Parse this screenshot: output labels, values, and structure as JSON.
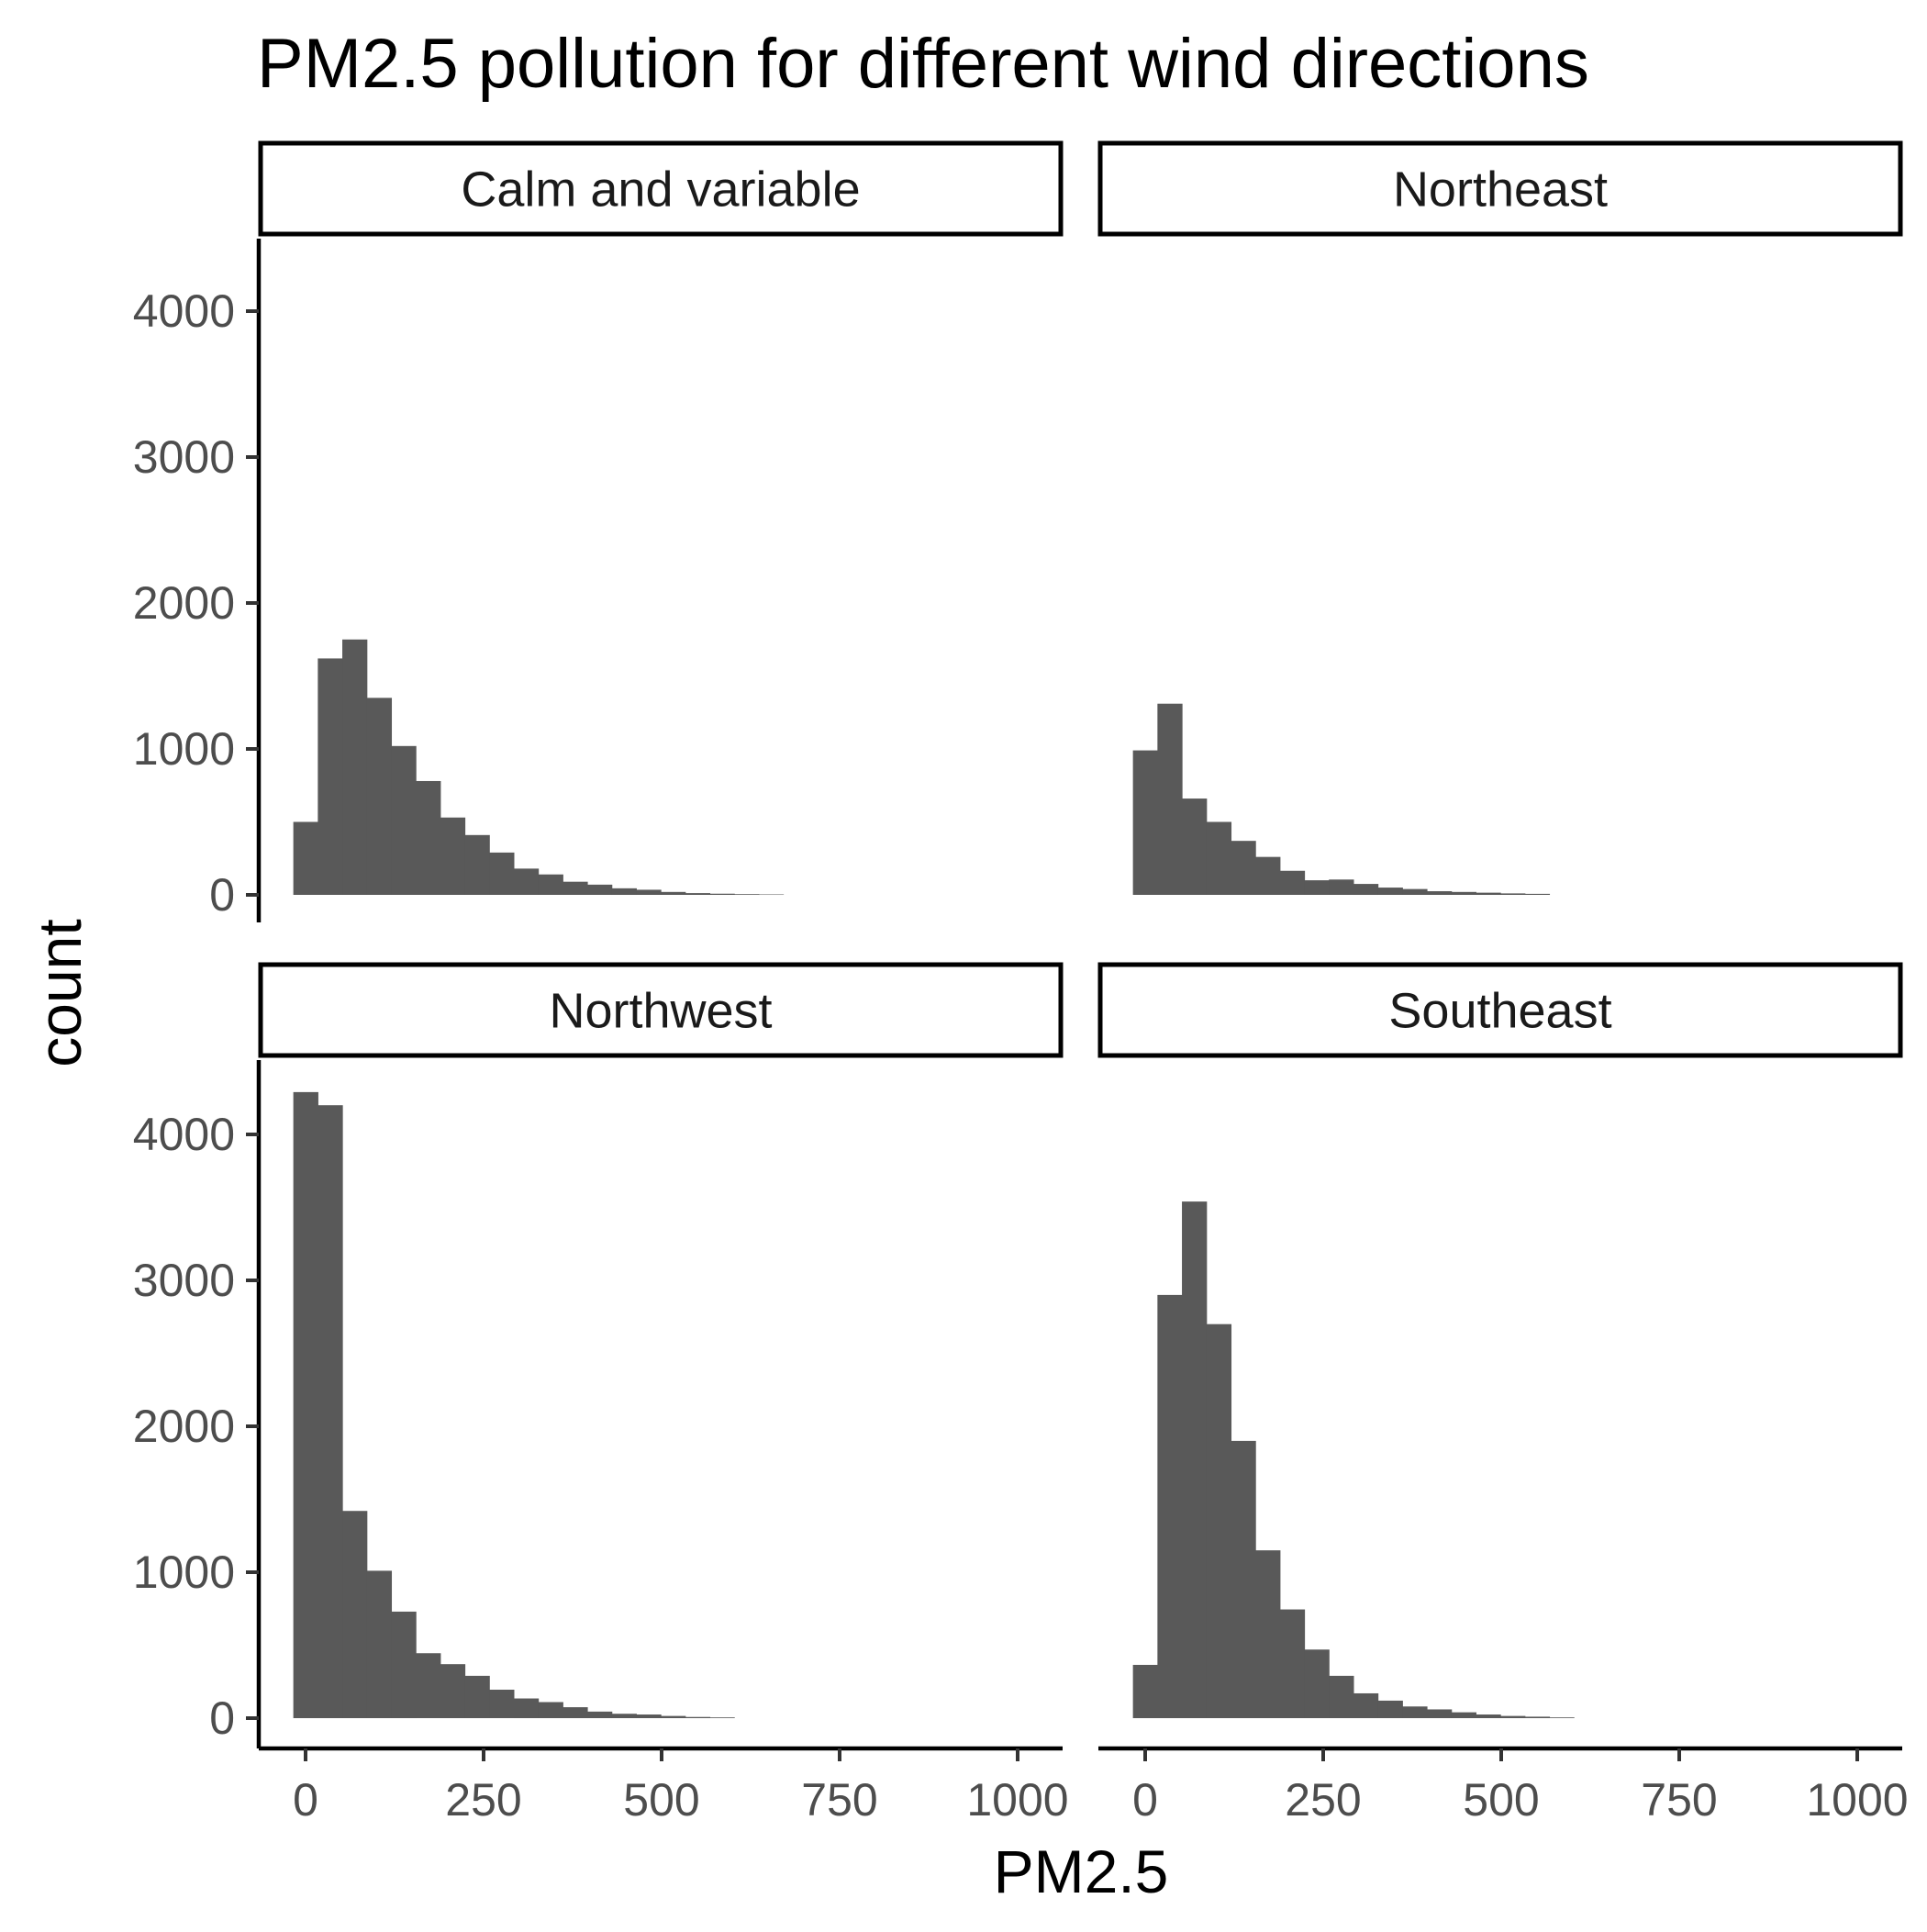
{
  "chart_data": {
    "type": "bar",
    "subtype": "faceted-histogram",
    "title": "PM2.5 pollution for different wind directions",
    "xlabel": "PM2.5",
    "ylabel": "count",
    "xlim": [
      0,
      1000
    ],
    "ylim": [
      0,
      4400
    ],
    "x_ticks": [
      0,
      250,
      500,
      750,
      1000
    ],
    "x_tick_labels": [
      "0",
      "250",
      "500",
      "750",
      "1000"
    ],
    "y_ticks": [
      0,
      1000,
      2000,
      3000,
      4000
    ],
    "y_tick_labels": [
      "0",
      "1000",
      "2000",
      "3000",
      "4000"
    ],
    "bin_width": 34.4,
    "bin_start": -17.2,
    "grid": false,
    "legend": "none",
    "bar_color": "#595959",
    "facets": [
      {
        "label": "Calm and variable",
        "values": [
          500,
          1620,
          1750,
          1350,
          1020,
          780,
          530,
          410,
          290,
          180,
          140,
          90,
          70,
          45,
          35,
          20,
          12,
          8,
          5,
          3
        ]
      },
      {
        "label": "Northeast",
        "values": [
          990,
          1310,
          660,
          500,
          370,
          260,
          165,
          100,
          105,
          75,
          50,
          40,
          25,
          20,
          15,
          10,
          7
        ]
      },
      {
        "label": "Northwest",
        "values": [
          4290,
          4200,
          1420,
          1010,
          730,
          445,
          370,
          290,
          195,
          135,
          110,
          75,
          45,
          30,
          25,
          15,
          8,
          5
        ]
      },
      {
        "label": "Southeast",
        "values": [
          365,
          2900,
          3540,
          2700,
          1900,
          1150,
          745,
          470,
          290,
          170,
          120,
          80,
          60,
          40,
          25,
          15,
          10,
          5
        ]
      }
    ]
  }
}
